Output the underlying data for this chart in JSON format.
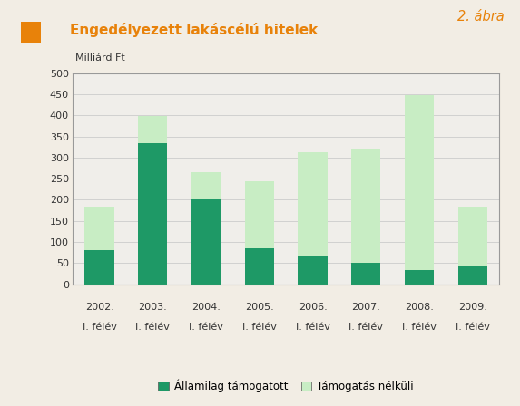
{
  "categories_year": [
    "2002.",
    "2003.",
    "2004.",
    "2005.",
    "2006.",
    "2007.",
    "2008.",
    "2009."
  ],
  "categories_half": [
    "I. félév",
    "I. félév",
    "I. félév",
    "I. félév",
    "I. félév",
    "I. félév",
    "I. félév",
    "I. félév"
  ],
  "allamilag": [
    80,
    335,
    200,
    85,
    68,
    50,
    33,
    45
  ],
  "tamogatas_nelkuli": [
    103,
    63,
    65,
    158,
    245,
    272,
    415,
    138
  ],
  "color_allamilag": "#1e9966",
  "color_tamogatas": "#c8edc4",
  "ylabel_text": "Milliárd Ft",
  "ylim": [
    0,
    500
  ],
  "yticks": [
    0,
    50,
    100,
    150,
    200,
    250,
    300,
    350,
    400,
    450,
    500
  ],
  "title": "Engedélyezett lakáscélú hitelek",
  "figure_label": "2. ábra",
  "legend_allamilag": "Államilag támogatott",
  "legend_tamogatas": "Támogatás nélküli",
  "bg_color": "#f2ede4",
  "plot_bg_color": "#f0eeea",
  "title_color": "#e8820a",
  "orange_color": "#e8820a",
  "grid_color": "#cccccc",
  "bar_edge_color": "#888888",
  "bar_width": 0.55,
  "spine_color": "#999999"
}
